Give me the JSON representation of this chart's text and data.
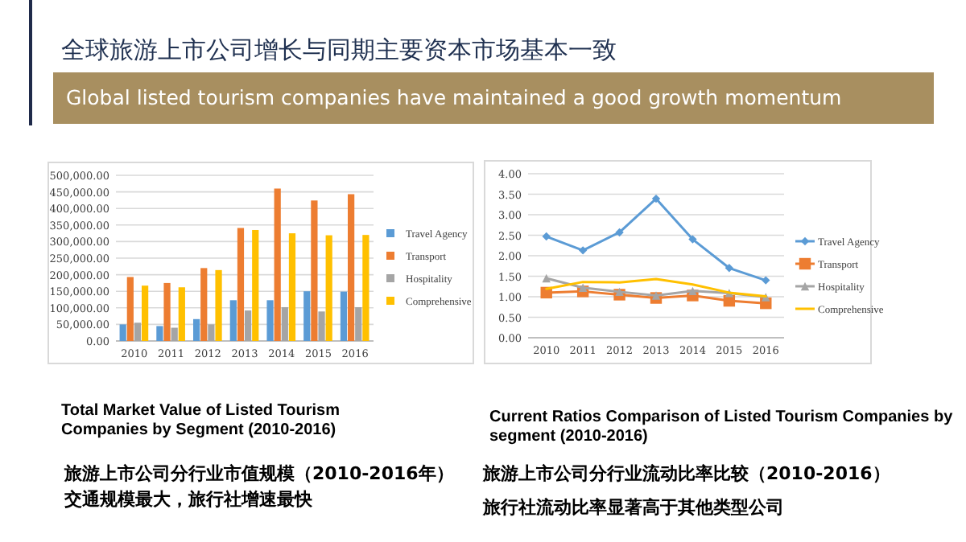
{
  "chart_data": [
    {
      "type": "bar",
      "title": "Total Market Value of Listed Tourism Companies by Segment (2010-2016)",
      "subtitle": "旅游上市公司分行业市值规模（2010-2016年）",
      "annotations": [
        "全球旅游上市公司增长与同期主要资本市场基本一致",
        "Global listed tourism companies have maintained a good growth momentum",
        "交通规模最大，旅行社增速最快"
      ],
      "categories": [
        "2010",
        "2011",
        "2012",
        "2013",
        "2014",
        "2015",
        "2016"
      ],
      "series": [
        {
          "name": "Travel Agency",
          "color": "#5b9bd5",
          "values": [
            50000,
            45000,
            66000,
            123000,
            123000,
            150000,
            149000
          ]
        },
        {
          "name": "Transport",
          "color": "#ed7d31",
          "values": [
            193000,
            175000,
            220000,
            341000,
            460000,
            424000,
            443000
          ]
        },
        {
          "name": "Hospitality",
          "color": "#a5a5a5",
          "values": [
            55000,
            40000,
            50000,
            92000,
            102000,
            89000,
            102000
          ]
        },
        {
          "name": "Comprehensive",
          "color": "#ffc000",
          "values": [
            167000,
            162000,
            214000,
            335000,
            325000,
            319000,
            320000
          ]
        }
      ],
      "ylim": [
        0,
        500000
      ],
      "yticks": [
        {
          "value": 0,
          "label": "0.00"
        },
        {
          "value": 50000,
          "label": "50,000.00"
        },
        {
          "value": 100000,
          "label": "100,000.00"
        },
        {
          "value": 150000,
          "label": "150,000.00"
        },
        {
          "value": 200000,
          "label": "200,000.00"
        },
        {
          "value": 250000,
          "label": "250,000.00"
        },
        {
          "value": 300000,
          "label": "300,000.00"
        },
        {
          "value": 350000,
          "label": "350,000.00"
        },
        {
          "value": 400000,
          "label": "400,000.00"
        },
        {
          "value": 450000,
          "label": "450,000.00"
        },
        {
          "value": 500000,
          "label": "500,000.00"
        }
      ],
      "grid": "y",
      "legend": "right"
    },
    {
      "type": "line",
      "title": "Current Ratios Comparison of Listed Tourism Companies by segment (2010-2016)",
      "subtitle": "旅游上市公司分行业流动比率比较（2010-2016）",
      "annotations": [
        "旅行社流动比率显著高于其他类型公司"
      ],
      "categories": [
        "2010",
        "2011",
        "2012",
        "2013",
        "2014",
        "2015",
        "2016"
      ],
      "series": [
        {
          "name": "Travel Agency",
          "color": "#5b9bd5",
          "marker": "diamond",
          "values": [
            2.47,
            2.13,
            2.57,
            3.39,
            2.4,
            1.7,
            1.4
          ]
        },
        {
          "name": "Transport",
          "color": "#ed7d31",
          "marker": "square",
          "values": [
            1.1,
            1.13,
            1.05,
            0.97,
            1.03,
            0.9,
            0.84
          ]
        },
        {
          "name": "Hospitality",
          "color": "#a5a5a5",
          "marker": "triangle",
          "values": [
            1.45,
            1.22,
            1.12,
            1.03,
            1.14,
            1.09,
            0.99
          ]
        },
        {
          "name": "Comprehensive",
          "color": "#ffc000",
          "marker": "none",
          "values": [
            1.19,
            1.36,
            1.35,
            1.43,
            1.3,
            1.1,
            1.01
          ]
        }
      ],
      "ylim": [
        0,
        4
      ],
      "yticks": [
        {
          "value": 0,
          "label": "0.00"
        },
        {
          "value": 0.5,
          "label": "0.50"
        },
        {
          "value": 1,
          "label": "1.00"
        },
        {
          "value": 1.5,
          "label": "1.50"
        },
        {
          "value": 2,
          "label": "2.00"
        },
        {
          "value": 2.5,
          "label": "2.50"
        },
        {
          "value": 3,
          "label": "3.00"
        },
        {
          "value": 3.5,
          "label": "3.50"
        },
        {
          "value": 4,
          "label": "4.00"
        }
      ],
      "grid": "y",
      "legend": "right"
    }
  ]
}
